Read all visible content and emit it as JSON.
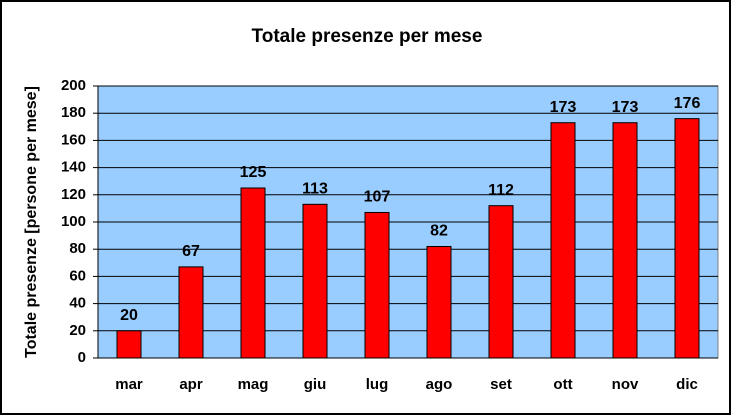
{
  "chart_data": {
    "type": "bar",
    "title": "Totale presenze per mese",
    "y_label": "Totale presenze [persone per mese]",
    "categories": [
      "mar",
      "apr",
      "mag",
      "giu",
      "lug",
      "ago",
      "set",
      "ott",
      "nov",
      "dic"
    ],
    "values": [
      20,
      67,
      125,
      113,
      107,
      82,
      112,
      173,
      173,
      176
    ],
    "color": "#ff0000",
    "background": "#99ccff",
    "ylim": [
      0,
      200
    ],
    "yticks": [
      0,
      20,
      40,
      60,
      80,
      100,
      120,
      140,
      160,
      180,
      200
    ],
    "grid": true
  }
}
